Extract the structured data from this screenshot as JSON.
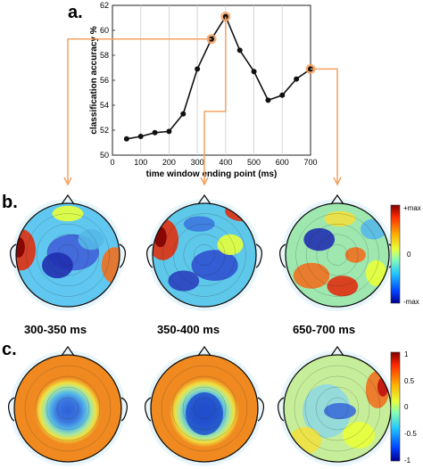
{
  "panels": {
    "a": "a.",
    "b": "b.",
    "c": "c."
  },
  "colors": {
    "line": "#111111",
    "marker": "#111111",
    "highlight": "#f4a261",
    "connector": "#f4a261",
    "grid": "#cfcfcf"
  },
  "chart_data": {
    "type": "line",
    "xlabel": "time window ending point (ms)",
    "ylabel": "classification accuracy %",
    "xlim": [
      0,
      700
    ],
    "ylim": [
      50,
      62
    ],
    "x_ticks": [
      "0",
      "100",
      "200",
      "300",
      "400",
      "500",
      "600",
      "700"
    ],
    "y_ticks": [
      "50",
      "52",
      "54",
      "56",
      "58",
      "60",
      "62"
    ],
    "grid": "vertical",
    "series": [
      {
        "x": [
          50,
          100,
          150,
          200,
          250,
          300,
          350,
          400,
          450,
          500,
          550,
          600,
          650,
          700
        ],
        "y": [
          51.3,
          51.5,
          51.8,
          51.9,
          53.3,
          56.9,
          59.3,
          61.1,
          58.4,
          56.7,
          54.4,
          54.8,
          56.1,
          56.9
        ]
      }
    ],
    "highlighted_x": [
      350,
      400,
      700
    ]
  },
  "topomaps": {
    "windows": [
      "300-350 ms",
      "350-400 ms",
      "650-700 ms"
    ],
    "row_b_colorbar": [
      "+max",
      "0",
      "-max"
    ],
    "row_c_colorbar": [
      "1",
      "0.5",
      "0",
      "-0.5",
      "-1"
    ]
  }
}
